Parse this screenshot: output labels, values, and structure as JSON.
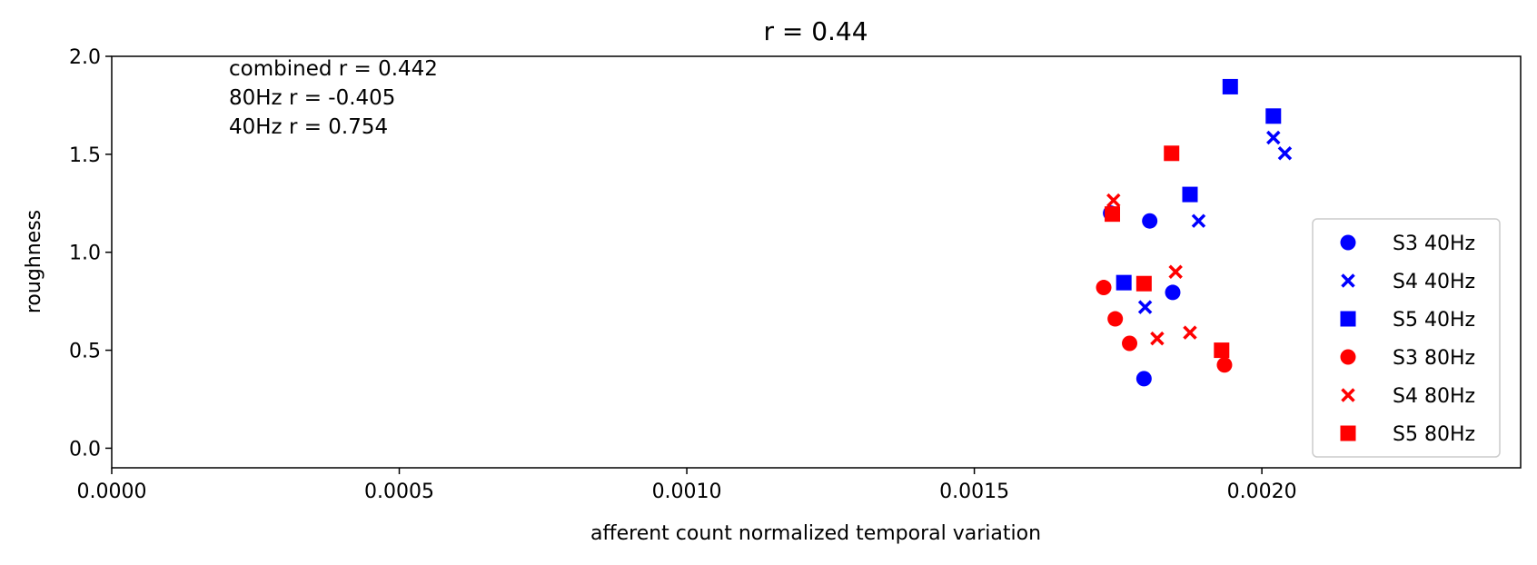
{
  "chart_data": {
    "type": "scatter",
    "title": "r = 0.44",
    "xlabel": "afferent count normalized temporal variation",
    "ylabel": "roughness",
    "xlim": [
      0,
      0.00245
    ],
    "ylim": [
      -0.1,
      2.0
    ],
    "xticks": [
      0.0,
      0.0005,
      0.001,
      0.0015,
      0.002
    ],
    "xtick_labels": [
      "0.0000",
      "0.0005",
      "0.0010",
      "0.0015",
      "0.0020"
    ],
    "yticks": [
      0.0,
      0.5,
      1.0,
      1.5,
      2.0
    ],
    "ytick_labels": [
      "0.0",
      "0.5",
      "1.0",
      "1.5",
      "2.0"
    ],
    "grid": false,
    "legend_position": "lower-right",
    "annotations": [
      "combined r = 0.442",
      "80Hz r = -0.405",
      "40Hz r = 0.754"
    ],
    "series": [
      {
        "name": "S3 40Hz",
        "marker": "circle",
        "color": "#0000ff",
        "points": [
          [
            0.001737,
            1.2
          ],
          [
            0.001805,
            1.16
          ],
          [
            0.001845,
            0.795
          ],
          [
            0.001795,
            0.355
          ]
        ]
      },
      {
        "name": "S4 40Hz",
        "marker": "x",
        "color": "#0000ff",
        "points": [
          [
            0.00202,
            1.585
          ],
          [
            0.00204,
            1.505
          ],
          [
            0.00189,
            1.16
          ],
          [
            0.001797,
            0.72
          ]
        ]
      },
      {
        "name": "S5 40Hz",
        "marker": "square",
        "color": "#0000ff",
        "points": [
          [
            0.001945,
            1.845
          ],
          [
            0.00202,
            1.695
          ],
          [
            0.001875,
            1.295
          ],
          [
            0.00176,
            0.845
          ]
        ]
      },
      {
        "name": "S3 80Hz",
        "marker": "circle",
        "color": "#ff0000",
        "points": [
          [
            0.001725,
            0.82
          ],
          [
            0.001745,
            0.66
          ],
          [
            0.00177,
            0.535
          ],
          [
            0.001935,
            0.425
          ]
        ]
      },
      {
        "name": "S4 80Hz",
        "marker": "x",
        "color": "#ff0000",
        "points": [
          [
            0.001742,
            1.265
          ],
          [
            0.00185,
            0.9
          ],
          [
            0.001818,
            0.56
          ],
          [
            0.001875,
            0.59
          ]
        ]
      },
      {
        "name": "S5 80Hz",
        "marker": "square",
        "color": "#ff0000",
        "points": [
          [
            0.001843,
            1.505
          ],
          [
            0.00174,
            1.195
          ],
          [
            0.001795,
            0.84
          ],
          [
            0.00193,
            0.5
          ]
        ]
      }
    ]
  }
}
